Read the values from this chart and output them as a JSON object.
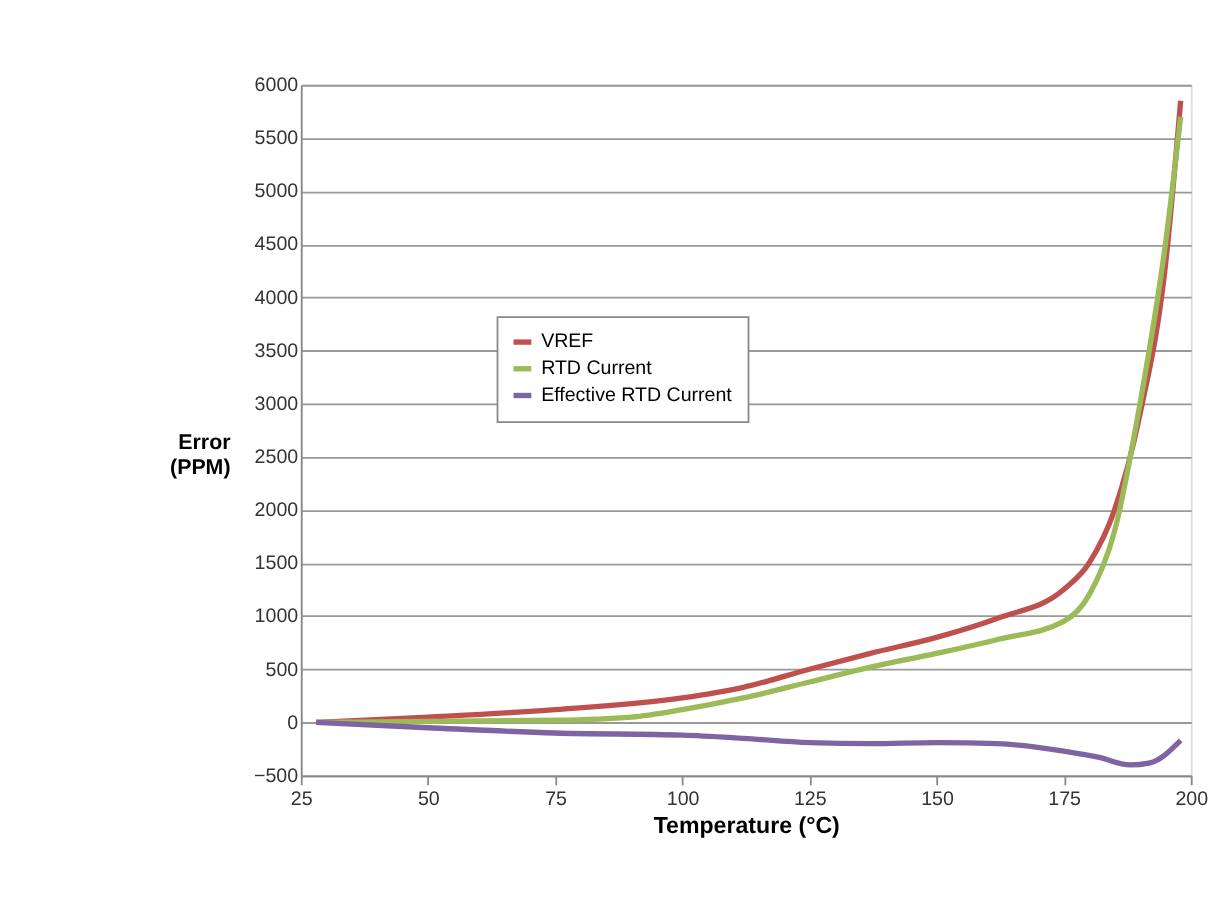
{
  "chart_data": {
    "type": "line",
    "xlabel": "Temperature (°C)",
    "ylabel": "Error\n(PPM)",
    "xlim": [
      25,
      200
    ],
    "xticks": [
      25,
      50,
      75,
      100,
      125,
      150,
      175,
      200
    ],
    "ylim": [
      -500,
      6000
    ],
    "yticks": [
      -500,
      0,
      500,
      1000,
      1500,
      2000,
      2500,
      3000,
      3500,
      4000,
      4500,
      5000,
      5500,
      6000
    ],
    "grid": "y",
    "legend": "left",
    "marker": "none",
    "line_style": "solid",
    "series": [
      {
        "name": "VREF",
        "color": "#c0504d",
        "x": [
          28,
          50,
          75,
          100,
          112,
          125,
          137,
          150,
          162,
          175,
          180,
          185,
          190,
          195,
          198
        ],
        "values": [
          0,
          50,
          120,
          230,
          330,
          500,
          650,
          800,
          980,
          1250,
          1500,
          2000,
          2900,
          4300,
          5850
        ]
      },
      {
        "name": "RTD Current",
        "color": "#9bbb59",
        "x": [
          28,
          50,
          75,
          90,
          100,
          112,
          125,
          137,
          150,
          162,
          175,
          180,
          185,
          190,
          195,
          198
        ],
        "values": [
          0,
          10,
          20,
          50,
          120,
          230,
          380,
          520,
          650,
          780,
          950,
          1200,
          1800,
          3000,
          4500,
          5700
        ]
      },
      {
        "name": "Effective RTD Current",
        "color": "#8064a2",
        "x": [
          28,
          50,
          75,
          100,
          112,
          125,
          137,
          150,
          162,
          175,
          182,
          188,
          192,
          198
        ],
        "values": [
          0,
          -50,
          -100,
          -120,
          -150,
          -190,
          -200,
          -190,
          -200,
          -270,
          -330,
          -400,
          -380,
          -170
        ]
      }
    ]
  }
}
